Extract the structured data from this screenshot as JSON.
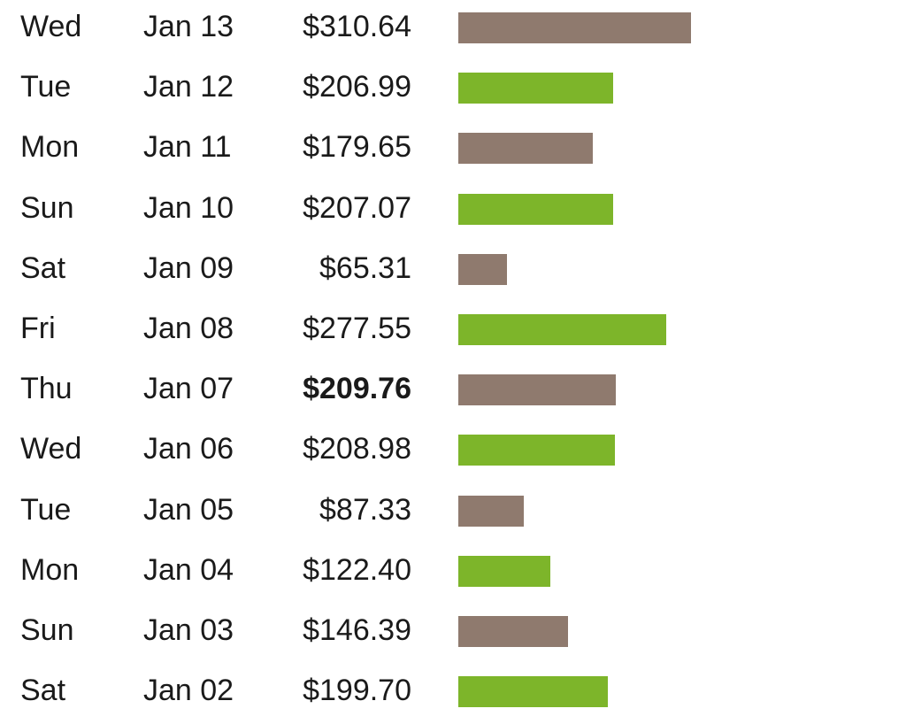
{
  "chart_data": {
    "type": "bar",
    "orientation": "horizontal",
    "bold_index": 6,
    "colors": {
      "a": "#8f7a6e",
      "b": "#7db52a"
    },
    "rows": [
      {
        "day": "Wed",
        "date": "Jan 13",
        "label": "$310.64",
        "value": 310.64,
        "color": "a"
      },
      {
        "day": "Tue",
        "date": "Jan 12",
        "label": "$206.99",
        "value": 206.99,
        "color": "b"
      },
      {
        "day": "Mon",
        "date": "Jan 11",
        "label": "$179.65",
        "value": 179.65,
        "color": "a"
      },
      {
        "day": "Sun",
        "date": "Jan 10",
        "label": "$207.07",
        "value": 207.07,
        "color": "b"
      },
      {
        "day": "Sat",
        "date": "Jan 09",
        "label": "$65.31",
        "value": 65.31,
        "color": "a"
      },
      {
        "day": "Fri",
        "date": "Jan 08",
        "label": "$277.55",
        "value": 277.55,
        "color": "b"
      },
      {
        "day": "Thu",
        "date": "Jan 07",
        "label": "$209.76",
        "value": 209.76,
        "color": "a"
      },
      {
        "day": "Wed",
        "date": "Jan 06",
        "label": "$208.98",
        "value": 208.98,
        "color": "b"
      },
      {
        "day": "Tue",
        "date": "Jan 05",
        "label": "$87.33",
        "value": 87.33,
        "color": "a"
      },
      {
        "day": "Mon",
        "date": "Jan 04",
        "label": "$122.40",
        "value": 122.4,
        "color": "b"
      },
      {
        "day": "Sun",
        "date": "Jan 03",
        "label": "$146.39",
        "value": 146.39,
        "color": "a"
      },
      {
        "day": "Sat",
        "date": "Jan 02",
        "label": "$199.70",
        "value": 199.7,
        "color": "b"
      }
    ]
  }
}
